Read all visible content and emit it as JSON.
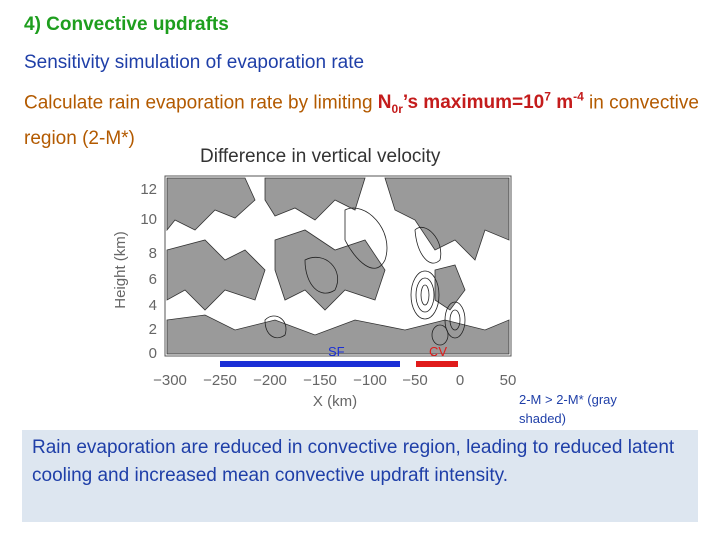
{
  "heading": "4) Convective updrafts",
  "line1": "Sensitivity simulation of evaporation rate",
  "line2": {
    "pre": "Calculate rain evaporation rate by limiting ",
    "n": "N",
    "n_sub": "0r",
    "mid": "’s maximum=10",
    "exp": "7",
    "unit": " m",
    "unit_exp": "-4",
    "post": " in convective region (2-M*)"
  },
  "figure": {
    "title": "Difference in vertical velocity",
    "ylabel": "Height (km)",
    "xlabel": "X (km)",
    "y_ticks": [
      "0",
      "2",
      "4",
      "6",
      "8",
      "10",
      "12"
    ],
    "x_ticks": [
      "−300",
      "−250",
      "−200",
      "−150",
      "−100",
      "−50",
      "0",
      "50"
    ],
    "region_sf": "SF",
    "region_cv": "CV",
    "colors": {
      "sf_bar": "#1a2fd6",
      "cv_bar": "#e01b1b",
      "shade": "#9a9a9a"
    }
  },
  "legend_note": "2-M > 2-M* (gray shaded)",
  "summary": "Rain evaporation are reduced in convective region, leading to reduced latent cooling and increased mean convective updraft intensity."
}
